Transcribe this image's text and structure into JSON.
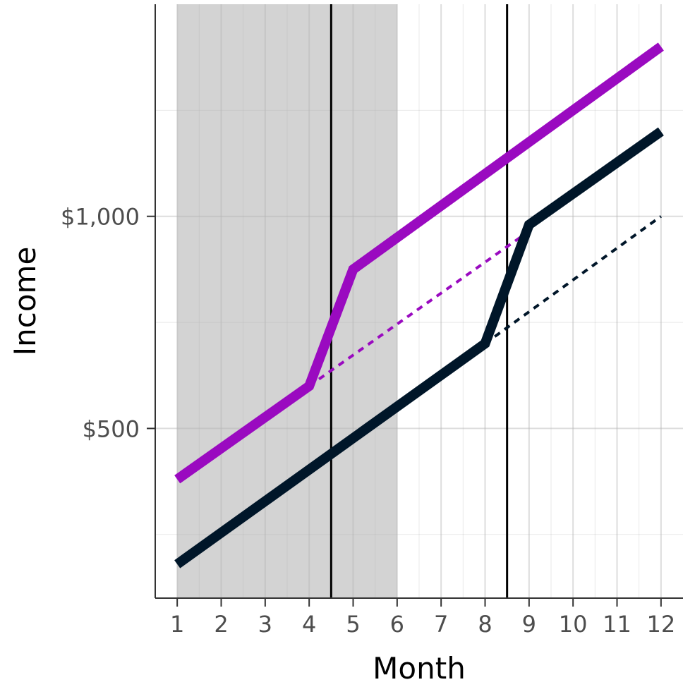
{
  "chart_data": {
    "type": "line",
    "xlabel": "Month",
    "ylabel": "Income",
    "x_ticks": [
      "1",
      "2",
      "3",
      "4",
      "5",
      "6",
      "7",
      "8",
      "9",
      "10",
      "11",
      "12"
    ],
    "y_ticks": [
      {
        "value": 500,
        "label": "$500"
      },
      {
        "value": 1000,
        "label": "$1,000"
      }
    ],
    "xlim": [
      0.5,
      12.5
    ],
    "ylim": [
      100,
      1500
    ],
    "grid": true,
    "shaded_region": {
      "x_start": 1,
      "x_end": 6,
      "color": "#d3d3d3"
    },
    "vertical_lines": [
      4.5,
      8.5
    ],
    "series": [
      {
        "color": "#9a0ac0",
        "style": "solid",
        "x": [
          1,
          4,
          5,
          12
        ],
        "y": [
          380,
          600,
          875,
          1400
        ]
      },
      {
        "color": "#9a0ac0",
        "style": "dotted",
        "x": [
          4,
          9
        ],
        "y": [
          600,
          965
        ]
      },
      {
        "color": "#001629",
        "style": "solid",
        "x": [
          1,
          8,
          9,
          12
        ],
        "y": [
          180,
          700,
          980,
          1200
        ]
      },
      {
        "color": "#001629",
        "style": "dotted",
        "x": [
          8,
          12
        ],
        "y": [
          700,
          1000
        ]
      }
    ]
  }
}
